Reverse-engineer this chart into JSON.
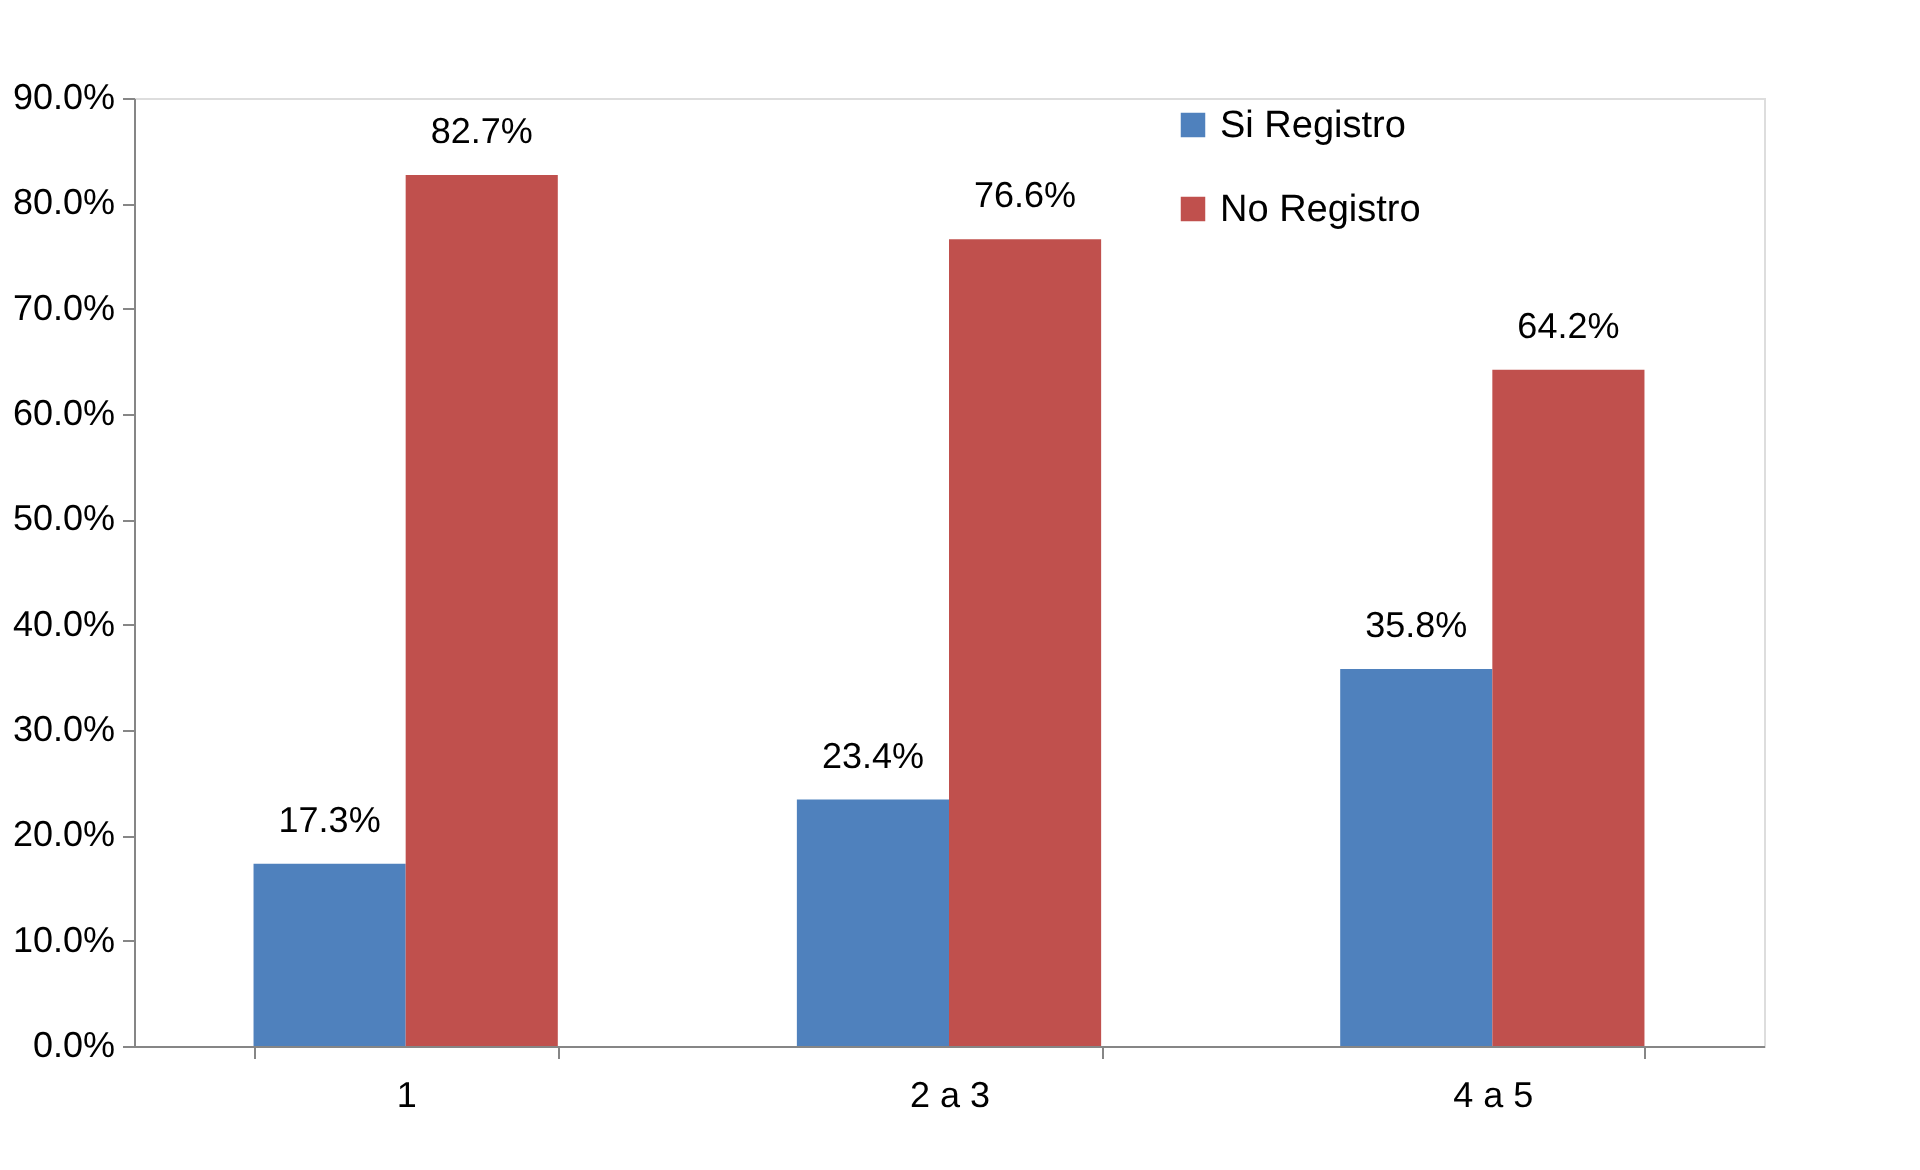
{
  "chart_data": {
    "type": "bar",
    "categories": [
      "1",
      "2 a 3",
      "4 a 5"
    ],
    "series": [
      {
        "name": "Si Registro",
        "color": "#4f81bd",
        "values": [
          17.3,
          23.4,
          35.8
        ],
        "value_labels": [
          "17.3%",
          "23.4%",
          "35.8%"
        ]
      },
      {
        "name": "No Registro",
        "color": "#c0504d",
        "values": [
          82.7,
          76.6,
          64.2
        ],
        "value_labels": [
          "82.7%",
          "76.6%",
          "64.2%"
        ]
      }
    ],
    "ylim": [
      0,
      90
    ],
    "yticks": [
      {
        "value": 0,
        "label": "0.0%"
      },
      {
        "value": 10,
        "label": "10.0%"
      },
      {
        "value": 20,
        "label": "20.0%"
      },
      {
        "value": 30,
        "label": "30.0%"
      },
      {
        "value": 40,
        "label": "40.0%"
      },
      {
        "value": 50,
        "label": "50.0%"
      },
      {
        "value": 60,
        "label": "60.0%"
      },
      {
        "value": 70,
        "label": "70.0%"
      },
      {
        "value": 80,
        "label": "80.0%"
      },
      {
        "value": 90,
        "label": "90.0%"
      }
    ],
    "grid": false,
    "legend": "top right"
  }
}
